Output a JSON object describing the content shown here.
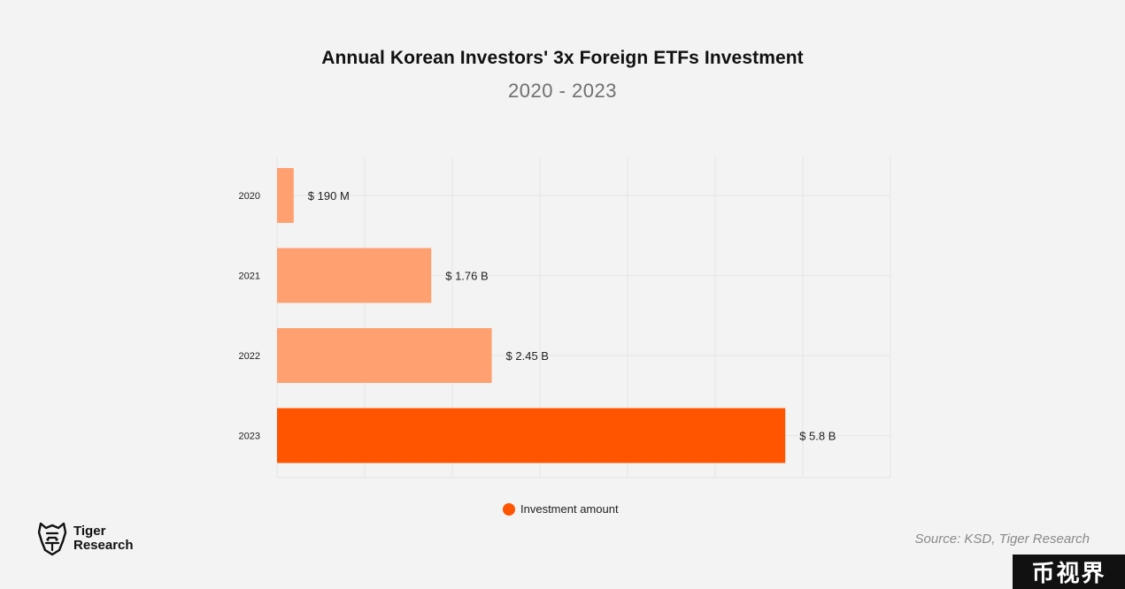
{
  "chart_data": {
    "type": "bar",
    "orientation": "horizontal",
    "title": "Annual Korean Investors' 3x Foreign ETFs Investment",
    "subtitle": "2020 - 2023",
    "categories": [
      "2020",
      "2021",
      "2022",
      "2023"
    ],
    "values": [
      0.19,
      1.76,
      2.45,
      5.8
    ],
    "value_unit": "billion USD",
    "data_labels": [
      "$ 190 M",
      "$ 1.76 B",
      "$ 2.45 B",
      "$ 5.8 B"
    ],
    "series": [
      {
        "name": "Investment amount",
        "values": [
          0.19,
          1.76,
          2.45,
          5.8
        ]
      }
    ],
    "xlim": [
      0,
      7
    ],
    "xlabel": "",
    "ylabel": "",
    "grid": true,
    "legend": "bottom-center",
    "colors": {
      "highlight": "#ff5500",
      "normal": "#ffa070",
      "grid": "#e6e6e6",
      "background": "#f3f3f3"
    },
    "highlight_category": "2023"
  },
  "legend": {
    "label": "Investment amount",
    "color": "#ff5500"
  },
  "footer": {
    "logo_line1": "Tiger",
    "logo_line2": "Research",
    "source": "Source: KSD, Tiger Research"
  },
  "watermark": "币视界"
}
